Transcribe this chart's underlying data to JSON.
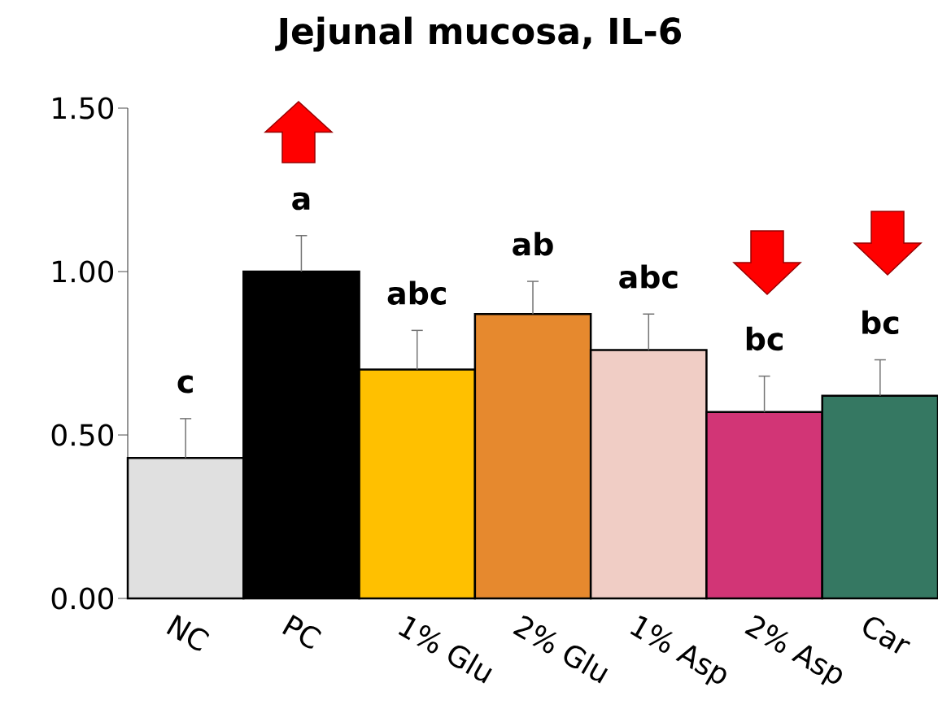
{
  "chart_data": {
    "type": "bar",
    "title": "Jejunal mucosa, IL-6",
    "categories": [
      "NC",
      "PC",
      "1% Glu",
      "2% Glu",
      "1% Asp",
      "2% Asp",
      "Car"
    ],
    "values": [
      0.43,
      1.0,
      0.7,
      0.87,
      0.76,
      0.57,
      0.62
    ],
    "colors": [
      "#e0e0e0",
      "#000000",
      "#ffc000",
      "#e6892e",
      "#f0cdc5",
      "#d23576",
      "#357862"
    ],
    "errors": [
      [
        0.43,
        0.55
      ],
      [
        1.0,
        1.11
      ],
      [
        0.7,
        0.82
      ],
      [
        0.87,
        0.97
      ],
      [
        0.76,
        0.87
      ],
      [
        0.57,
        0.68
      ],
      [
        0.62,
        0.73
      ]
    ],
    "ylim": [
      0,
      1.5
    ],
    "yticks": [
      {
        "value": 0,
        "label": "0.00"
      },
      {
        "value": 0.5,
        "label": "0.50"
      },
      {
        "value": 1,
        "label": "1.00"
      },
      {
        "value": 1.5,
        "label": "1.50"
      }
    ],
    "annotations": [
      "c",
      "a",
      "abc",
      "ab",
      "abc",
      "bc",
      "bc"
    ]
  }
}
